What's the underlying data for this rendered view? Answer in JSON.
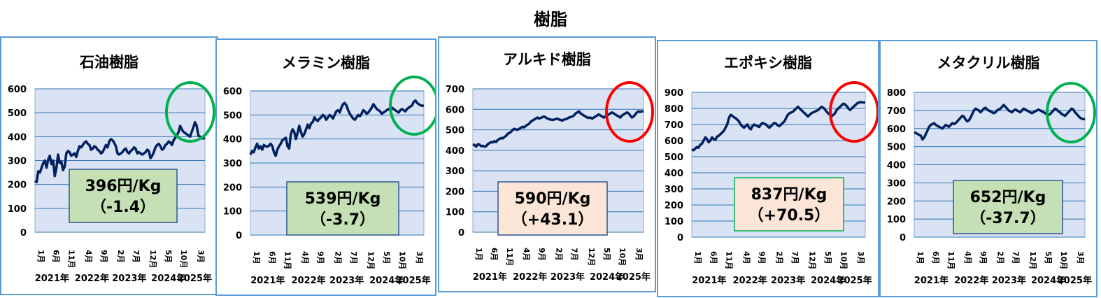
{
  "title": "樹脂",
  "colors": {
    "plot_bg": "#dae3f3",
    "gridline": "#2e75b6",
    "line": "#002060",
    "panel_border": "#5b9bd5",
    "badge_green_bg": "#c5e0b4",
    "badge_peach_bg": "#fbe5d6",
    "badge_blue_border": "#2f5597",
    "badge_green_border": "#00b050",
    "circle_green": "#00b050",
    "circle_red": "#ff0000"
  },
  "x_axis": {
    "months": [
      "1月",
      "6月",
      "11月",
      "4月",
      "9月",
      "2月",
      "7月",
      "12月",
      "5月",
      "10月",
      "3月"
    ],
    "years": [
      "2021年",
      "2022年",
      "2023年",
      "2024年",
      "2025年"
    ]
  },
  "chart_data": [
    {
      "type": "line",
      "title": "石油樹脂",
      "ylim": [
        0,
        600
      ],
      "yticks": [
        0,
        100,
        200,
        300,
        400,
        500,
        600
      ],
      "values": [
        215,
        210,
        255,
        250,
        270,
        290,
        300,
        270,
        305,
        320,
        285,
        300,
        235,
        270,
        325,
        290,
        295,
        260,
        275,
        330,
        340,
        335,
        320,
        325,
        330,
        315,
        340,
        360,
        355,
        365,
        375,
        380,
        370,
        365,
        345,
        350,
        360,
        355,
        345,
        340,
        330,
        335,
        350,
        365,
        355,
        380,
        390,
        385,
        375,
        360,
        330,
        325,
        330,
        335,
        345,
        350,
        335,
        330,
        340,
        345,
        355,
        350,
        330,
        335,
        330,
        325,
        330,
        335,
        345,
        340,
        310,
        320,
        335,
        355,
        365,
        370,
        360,
        345,
        350,
        365,
        370,
        380,
        375,
        365,
        385,
        395,
        405,
        420,
        445,
        430,
        420,
        415,
        410,
        405,
        400,
        420,
        440,
        460,
        445,
        405,
        400,
        395,
        392,
        396
      ],
      "badge": {
        "line1": "396円/Kg",
        "line2": "（-1.4）",
        "style": "green"
      },
      "circle_color": "green"
    },
    {
      "type": "line",
      "title": "メラミン樹脂",
      "ylim": [
        0,
        600
      ],
      "yticks": [
        0,
        100,
        200,
        300,
        400,
        500,
        600
      ],
      "values": [
        335,
        350,
        345,
        365,
        380,
        360,
        370,
        355,
        375,
        370,
        368,
        372,
        380,
        370,
        345,
        330,
        355,
        370,
        380,
        395,
        400,
        405,
        370,
        360,
        420,
        440,
        430,
        400,
        425,
        455,
        430,
        410,
        420,
        440,
        460,
        445,
        465,
        470,
        490,
        480,
        475,
        485,
        490,
        500,
        495,
        480,
        490,
        500,
        495,
        485,
        500,
        515,
        520,
        510,
        530,
        545,
        550,
        540,
        520,
        505,
        495,
        485,
        480,
        490,
        500,
        495,
        505,
        520,
        515,
        505,
        510,
        520,
        530,
        545,
        535,
        525,
        520,
        515,
        505,
        510,
        515,
        520,
        525,
        520,
        530,
        525,
        520,
        515,
        510,
        520,
        525,
        520,
        515,
        525,
        530,
        535,
        540,
        555,
        560,
        550,
        545,
        540,
        538,
        539
      ],
      "badge": {
        "line1": "539円/Kg",
        "line2": "（-3.7）",
        "style": "green"
      },
      "circle_color": "green"
    },
    {
      "type": "line",
      "title": "アルキド樹脂",
      "ylim": [
        0,
        700
      ],
      "yticks": [
        0,
        100,
        200,
        300,
        400,
        500,
        600,
        700
      ],
      "values": [
        430,
        425,
        418,
        430,
        428,
        420,
        422,
        418,
        420,
        430,
        435,
        440,
        438,
        445,
        440,
        450,
        455,
        460,
        458,
        465,
        470,
        480,
        485,
        490,
        500,
        505,
        502,
        500,
        505,
        510,
        515,
        512,
        520,
        525,
        530,
        540,
        545,
        550,
        555,
        560,
        555,
        558,
        562,
        565,
        560,
        555,
        552,
        550,
        548,
        550,
        552,
        555,
        550,
        548,
        545,
        550,
        552,
        555,
        560,
        562,
        565,
        570,
        580,
        585,
        590,
        580,
        575,
        570,
        565,
        560,
        558,
        560,
        555,
        560,
        565,
        570,
        575,
        570,
        565,
        560,
        565,
        570,
        575,
        580,
        585,
        580,
        575,
        570,
        565,
        560,
        570,
        575,
        580,
        585,
        580,
        570,
        560,
        565,
        575,
        585,
        590,
        588,
        590,
        590
      ],
      "badge": {
        "line1": "590円/Kg",
        "line2": "（+43.1）",
        "style": "peach"
      },
      "circle_color": "red"
    },
    {
      "type": "line",
      "title": "エポキシ樹脂",
      "ylim": [
        0,
        900
      ],
      "yticks": [
        0,
        100,
        200,
        300,
        400,
        500,
        600,
        700,
        800,
        900
      ],
      "values": [
        545,
        540,
        550,
        560,
        555,
        575,
        580,
        600,
        620,
        610,
        590,
        600,
        620,
        610,
        605,
        625,
        630,
        640,
        650,
        660,
        680,
        700,
        740,
        760,
        755,
        745,
        740,
        730,
        720,
        700,
        690,
        680,
        690,
        700,
        680,
        670,
        690,
        700,
        695,
        690,
        685,
        700,
        710,
        705,
        700,
        690,
        680,
        690,
        700,
        710,
        705,
        695,
        690,
        700,
        710,
        720,
        740,
        760,
        770,
        775,
        780,
        790,
        800,
        810,
        800,
        790,
        780,
        770,
        760,
        750,
        760,
        770,
        775,
        780,
        785,
        790,
        800,
        810,
        805,
        795,
        780,
        770,
        760,
        750,
        760,
        770,
        790,
        800,
        810,
        820,
        830,
        825,
        815,
        800,
        790,
        800,
        810,
        820,
        830,
        835,
        840,
        838,
        837,
        837
      ],
      "badge": {
        "line1": "837円/Kg",
        "line2": "（+70.5）",
        "style": "peach"
      },
      "circle_color": "red"
    },
    {
      "type": "line",
      "title": "メタクリル樹脂",
      "ylim": [
        0,
        800
      ],
      "yticks": [
        0,
        100,
        200,
        300,
        400,
        500,
        600,
        700,
        800
      ],
      "values": [
        580,
        575,
        570,
        565,
        560,
        540,
        550,
        570,
        590,
        610,
        620,
        625,
        630,
        620,
        615,
        610,
        605,
        600,
        610,
        620,
        615,
        610,
        620,
        630,
        625,
        630,
        640,
        650,
        660,
        670,
        665,
        650,
        640,
        645,
        660,
        680,
        700,
        710,
        705,
        700,
        690,
        700,
        710,
        715,
        705,
        700,
        695,
        690,
        685,
        690,
        700,
        705,
        710,
        720,
        730,
        720,
        710,
        700,
        695,
        690,
        700,
        705,
        700,
        695,
        690,
        700,
        710,
        705,
        700,
        695,
        690,
        685,
        690,
        695,
        700,
        705,
        700,
        695,
        690,
        685,
        680,
        675,
        680,
        690,
        700,
        710,
        705,
        695,
        690,
        680,
        675,
        670,
        680,
        690,
        700,
        710,
        705,
        690,
        680,
        670,
        660,
        655,
        652,
        652
      ],
      "badge": {
        "line1": "652円/Kg",
        "line2": "（-37.7）",
        "style": "green"
      },
      "circle_color": "green"
    }
  ]
}
